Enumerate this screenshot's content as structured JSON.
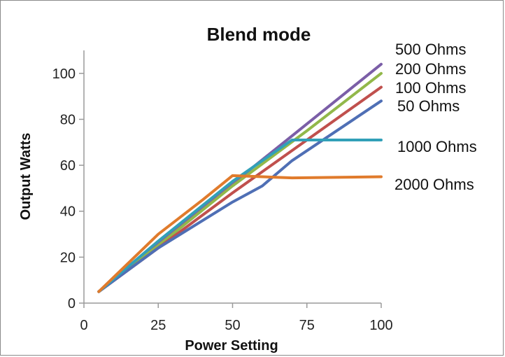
{
  "chart_data": {
    "type": "line",
    "title": "Blend mode",
    "xlabel": "Power Setting",
    "ylabel": "Output Watts",
    "xlim": [
      0,
      100
    ],
    "ylim": [
      0,
      110
    ],
    "xticks": [
      0,
      25,
      50,
      75,
      100
    ],
    "yticks": [
      0,
      20,
      40,
      60,
      80,
      100
    ],
    "grid": false,
    "legend": "none",
    "series": [
      {
        "name": "500 Ohms",
        "color": "#7b5ea7",
        "x": [
          5,
          25,
          50,
          75,
          100
        ],
        "y": [
          5,
          26,
          52,
          78,
          104
        ]
      },
      {
        "name": "200 Ohms",
        "color": "#92b84a",
        "x": [
          5,
          25,
          50,
          75,
          100
        ],
        "y": [
          5,
          25,
          51,
          75,
          100
        ]
      },
      {
        "name": "100 Ohms",
        "color": "#c0504d",
        "x": [
          5,
          25,
          50,
          75,
          100
        ],
        "y": [
          5,
          24,
          48,
          71,
          94
        ]
      },
      {
        "name": "50 Ohms",
        "color": "#4f6fb5",
        "x": [
          5,
          25,
          50,
          60,
          70,
          100
        ],
        "y": [
          5,
          24,
          44,
          51,
          62,
          88
        ]
      },
      {
        "name": "1000 Ohms",
        "color": "#31a0b8",
        "x": [
          5,
          25,
          50,
          70,
          100
        ],
        "y": [
          5,
          27,
          53,
          71,
          71
        ]
      },
      {
        "name": "2000 Ohms",
        "color": "#e07b2c",
        "x": [
          5,
          25,
          40,
          50,
          70,
          100
        ],
        "y": [
          5,
          30,
          45,
          55.5,
          54.5,
          55
        ]
      }
    ]
  }
}
